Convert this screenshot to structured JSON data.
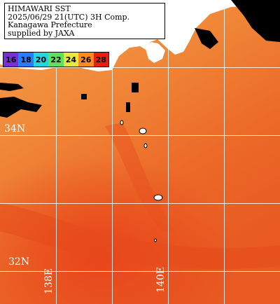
{
  "title": {
    "line1": "HIMAWARI SST",
    "line2": "2025/06/29 21(UTC) 3H Comp.",
    "line3": "Kanagawa Prefecture",
    "line4": "supplied by JAXA"
  },
  "legend": {
    "labels": [
      "16",
      "18",
      "20",
      "22",
      "24",
      "26",
      "28"
    ],
    "colors": [
      "#7a2fd6",
      "#2b7bff",
      "#23d5e0",
      "#5fe05a",
      "#e8e83a",
      "#ff8a1f",
      "#e8200a"
    ]
  },
  "grid": {
    "lat_labels": [
      "34N",
      "32N"
    ],
    "lon_labels": [
      "138E",
      "140E"
    ]
  },
  "colors": {
    "sea_warm": "#f08a3a",
    "sea_hot": "#e8451a",
    "land": "#ffffff",
    "no_data": "#000000"
  }
}
